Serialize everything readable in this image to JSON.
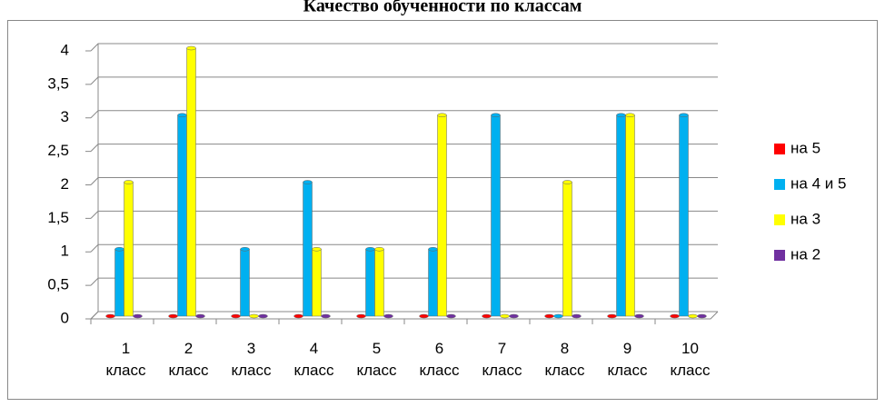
{
  "chart_data": {
    "type": "bar",
    "title": "Качество обученности по классам",
    "categories": [
      "1 класс",
      "2 класс",
      "3 класс",
      "4 класс",
      "5 класс",
      "6 класс",
      "7 класс",
      "8 класс",
      "9 класс",
      "10 класс"
    ],
    "series": [
      {
        "name": "на 5",
        "color": "#ff0000",
        "values": [
          0,
          0,
          0,
          0,
          0,
          0,
          0,
          0,
          0,
          0
        ]
      },
      {
        "name": "на 4 и 5",
        "color": "#00b0f0",
        "values": [
          1,
          3,
          1,
          2,
          1,
          1,
          3,
          0,
          3,
          3
        ]
      },
      {
        "name": "на 3",
        "color": "#ffff00",
        "values": [
          2,
          4,
          0,
          1,
          1,
          3,
          0,
          2,
          3,
          0
        ]
      },
      {
        "name": "на 2",
        "color": "#7030a0",
        "values": [
          0,
          0,
          0,
          0,
          0,
          0,
          0,
          0,
          0,
          0
        ]
      }
    ],
    "ylim": [
      0,
      4
    ],
    "yticks": [
      0,
      {
        "value": 0.5,
        "label": "0,5"
      },
      1,
      {
        "value": 1.5,
        "label": "1,5"
      },
      2,
      {
        "value": 2.5,
        "label": "2,5"
      },
      3,
      {
        "value": 3.5,
        "label": "3,5"
      },
      4
    ],
    "grid": true,
    "legend": "right"
  }
}
